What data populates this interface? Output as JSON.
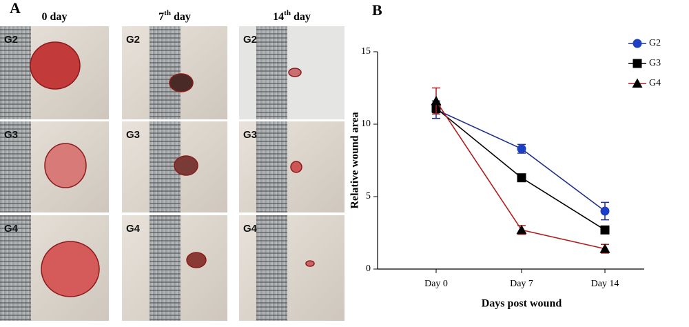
{
  "panel_a": {
    "label": "A",
    "columns": [
      {
        "base": "0 day"
      },
      {
        "base": "7",
        "sup": "th",
        "tail": " day"
      },
      {
        "base": "14",
        "sup": "th",
        "tail": " day"
      }
    ],
    "rows": [
      "G2",
      "G3",
      "G4"
    ]
  },
  "chart_data": {
    "type": "line",
    "panel_label": "B",
    "categories": [
      "Day 0",
      "Day 7",
      "Day 14"
    ],
    "series": [
      {
        "name": "G2",
        "color": "#1f2f8a",
        "marker": "circle",
        "marker_color": "#1d3fc4",
        "values": [
          11.0,
          8.3,
          4.0
        ],
        "errors": [
          0.6,
          0.3,
          0.6
        ]
      },
      {
        "name": "G3",
        "color": "#000000",
        "marker": "square",
        "marker_color": "#000000",
        "values": [
          11.1,
          6.3,
          2.7
        ],
        "errors": [
          0.3,
          0.2,
          0.2
        ]
      },
      {
        "name": "G4",
        "color": "#b01c1c",
        "marker": "triangle",
        "marker_color": "#000000",
        "values": [
          11.6,
          2.7,
          1.4
        ],
        "errors": [
          0.9,
          0.3,
          0.3
        ]
      }
    ],
    "ylim": [
      0,
      15
    ],
    "yticks": [
      0,
      5,
      10,
      15
    ],
    "xlabel": "Days post wound",
    "ylabel": "Relative wound area",
    "legend": "top-right"
  }
}
